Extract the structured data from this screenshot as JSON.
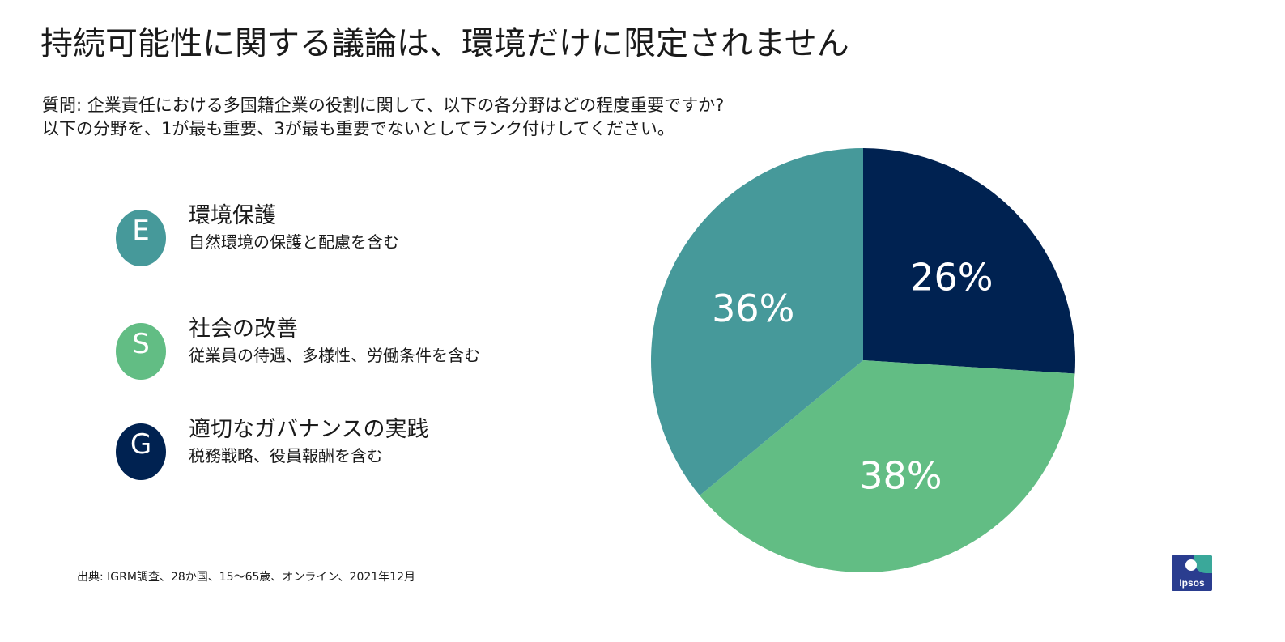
{
  "header": {
    "title": "持続可能性に関する議論は、環境だけに限定されません",
    "question_line1": "質問: 企業責任における多国籍企業の役割に関して、以下の各分野はどの程度重要ですか?",
    "question_line2": "以下の分野を、1が最も重要、3が最も重要でないとしてランク付けしてください。"
  },
  "legend": [
    {
      "letter": "E",
      "title": "環境保護",
      "description": "自然環境の保護と配慮を含む",
      "color": "#46999a"
    },
    {
      "letter": "S",
      "title": "社会の改善",
      "description": "従業員の待遇、多様性、労働条件を含む",
      "color": "#62bd84"
    },
    {
      "letter": "G",
      "title": "適切なガバナンスの実践",
      "description": "税務戦略、役員報酬を含む",
      "color": "#002251"
    }
  ],
  "chart_data": {
    "type": "pie",
    "start_angle_deg": 0,
    "direction": "clockwise",
    "series": [
      {
        "name": "G",
        "value": 26,
        "label": "26%",
        "color": "#002251"
      },
      {
        "name": "S",
        "value": 38,
        "label": "38%",
        "color": "#62bd84"
      },
      {
        "name": "E",
        "value": 36,
        "label": "36%",
        "color": "#46999a"
      }
    ]
  },
  "footer": {
    "source": "出典: IGRM調査、28か国、15～65歳、オンライン、2021年12月",
    "logo_text": "Ipsos"
  }
}
